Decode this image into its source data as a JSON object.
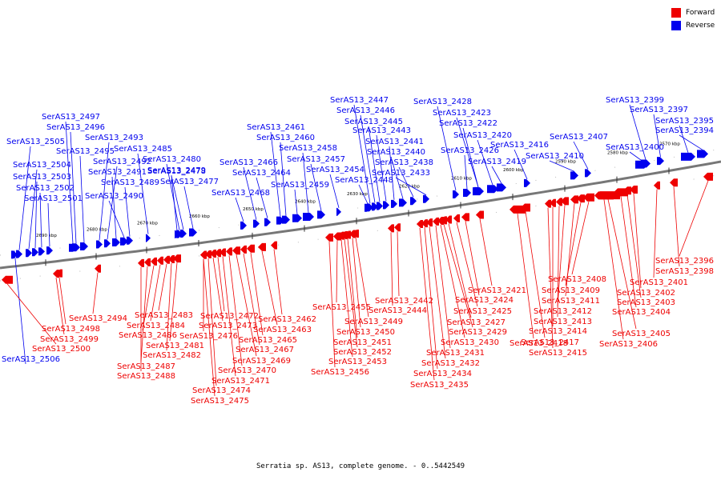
{
  "legend": {
    "forward_label": "Forward",
    "reverse_label": "Reverse",
    "forward_color": "#ee0000",
    "reverse_color": "#0000ee"
  },
  "caption": "Serratia sp. AS13, complete genome. - 0..5442549",
  "scale_ticks": [
    "2690 kbp",
    "2680 kbp",
    "2670 kbp",
    "2660 kbp",
    "2650 kbp",
    "2640 kbp",
    "2630 kbp",
    "2620 kbp",
    "2610 kbp",
    "2600 kbp",
    "2590 kbp",
    "2580 kbp",
    "2570 kbp"
  ],
  "reverse_genes": [
    "SerAS13_2394",
    "SerAS13_2395",
    "SerAS13_2397",
    "SerAS13_2399",
    "SerAS13_2400",
    "SerAS13_2407",
    "SerAS13_2410",
    "SerAS13_2416",
    "SerAS13_2419",
    "SerAS13_2420",
    "SerAS13_2422",
    "SerAS13_2423",
    "SerAS13_2426",
    "SerAS13_2428",
    "SerAS13_2433",
    "SerAS13_2438",
    "SerAS13_2440",
    "SerAS13_2441",
    "SerAS13_2443",
    "SerAS13_2445",
    "SerAS13_2446",
    "SerAS13_2447",
    "SerAS13_2448",
    "SerAS13_2454",
    "SerAS13_2457",
    "SerAS13_2458",
    "SerAS13_2459",
    "SerAS13_2460",
    "SerAS13_2461",
    "SerAS13_2464",
    "SerAS13_2466",
    "SerAS13_2468",
    "SerAS13_2477",
    "SerAS13_2478",
    "SerAS13_2479",
    "SerAS13_2480",
    "SerAS13_2485",
    "SerAS13_2489",
    "SerAS13_2490",
    "SerAS13_2491",
    "SerAS13_2492",
    "SerAS13_2493",
    "SerAS13_2495",
    "SerAS13_2496",
    "SerAS13_2497",
    "SerAS13_2501",
    "SerAS13_2502",
    "SerAS13_2503",
    "SerAS13_2504",
    "SerAS13_2505",
    "SerAS13_2506"
  ],
  "forward_genes": [
    "SerAS13_2396",
    "SerAS13_2398",
    "SerAS13_2401",
    "SerAS13_2402",
    "SerAS13_2403",
    "SerAS13_2404",
    "SerAS13_2405",
    "SerAS13_2406",
    "SerAS13_2408",
    "SerAS13_2409",
    "SerAS13_2411",
    "SerAS13_2412",
    "SerAS13_2413",
    "SerAS13_2414",
    "SerAS13_2415",
    "SerAS13_2417",
    "SerAS13_2418",
    "SerAS13_2421",
    "SerAS13_2424",
    "SerAS13_2425",
    "SerAS13_2427",
    "SerAS13_2429",
    "SerAS13_2430",
    "SerAS13_2431",
    "SerAS13_2432",
    "SerAS13_2434",
    "SerAS13_2435",
    "SerAS13_2442",
    "SerAS13_2444",
    "SerAS13_2449",
    "SerAS13_2450",
    "SerAS13_2451",
    "SerAS13_2452",
    "SerAS13_2453",
    "SerAS13_2455",
    "SerAS13_2456",
    "SerAS13_2462",
    "SerAS13_2463",
    "SerAS13_2465",
    "SerAS13_2467",
    "SerAS13_2469",
    "SerAS13_2470",
    "SerAS13_2471",
    "SerAS13_2472",
    "SerAS13_2473",
    "SerAS13_2474",
    "SerAS13_2475",
    "SerAS13_2476",
    "SerAS13_2481",
    "SerAS13_2482",
    "SerAS13_2483",
    "SerAS13_2484",
    "SerAS13_2486",
    "SerAS13_2487",
    "SerAS13_2488",
    "SerAS13_2494",
    "SerAS13_2498",
    "SerAS13_2499",
    "SerAS13_2500"
  ]
}
